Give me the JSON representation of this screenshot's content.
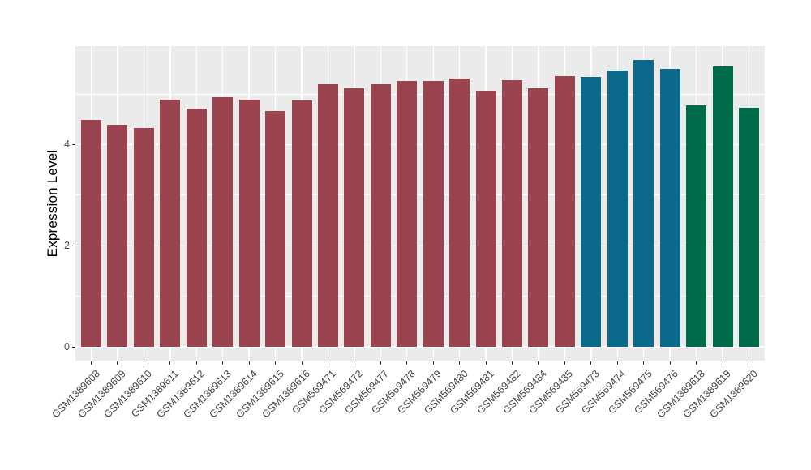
{
  "chart_data": {
    "type": "bar",
    "title": "",
    "xlabel": "",
    "ylabel": "Expression Level",
    "ylim": [
      0,
      6
    ],
    "yticks": [
      0,
      2,
      4
    ],
    "ytick_labels": [
      "0",
      "2",
      "4"
    ],
    "y_minor_gridlines": [
      1,
      3,
      5
    ],
    "grid": true,
    "legend": false,
    "x_tick_rotation_deg": 45,
    "categories": [
      "GSM1389608",
      "GSM1389609",
      "GSM1389610",
      "GSM1389611",
      "GSM1389612",
      "GSM1389613",
      "GSM1389614",
      "GSM1389615",
      "GSM1389616",
      "GSM569471",
      "GSM569472",
      "GSM569477",
      "GSM569478",
      "GSM569479",
      "GSM569480",
      "GSM569481",
      "GSM569482",
      "GSM569484",
      "GSM569485",
      "GSM569473",
      "GSM569474",
      "GSM569475",
      "GSM569476",
      "GSM1389618",
      "GSM1389619",
      "GSM1389620"
    ],
    "values": [
      4.48,
      4.39,
      4.33,
      4.88,
      4.71,
      4.94,
      4.88,
      4.67,
      4.87,
      5.19,
      5.11,
      5.19,
      5.25,
      5.25,
      5.31,
      5.07,
      5.27,
      5.12,
      5.36,
      5.34,
      5.47,
      5.67,
      5.49,
      4.78,
      5.55,
      4.73
    ],
    "bar_group_index": [
      0,
      0,
      0,
      0,
      0,
      0,
      0,
      0,
      0,
      0,
      0,
      0,
      0,
      0,
      0,
      0,
      0,
      0,
      0,
      1,
      1,
      1,
      1,
      2,
      2,
      2
    ],
    "group_colors": [
      "#9A4450",
      "#0B6A8B",
      "#006B4A"
    ]
  },
  "style": {
    "background": "#FFFFFF",
    "panel_bg": "#EBEBEB",
    "grid_color": "#FFFFFF",
    "tick_mark_color": "#333333",
    "tick_label_color": "#4D4D4D",
    "axis_title_color": "#000000"
  }
}
